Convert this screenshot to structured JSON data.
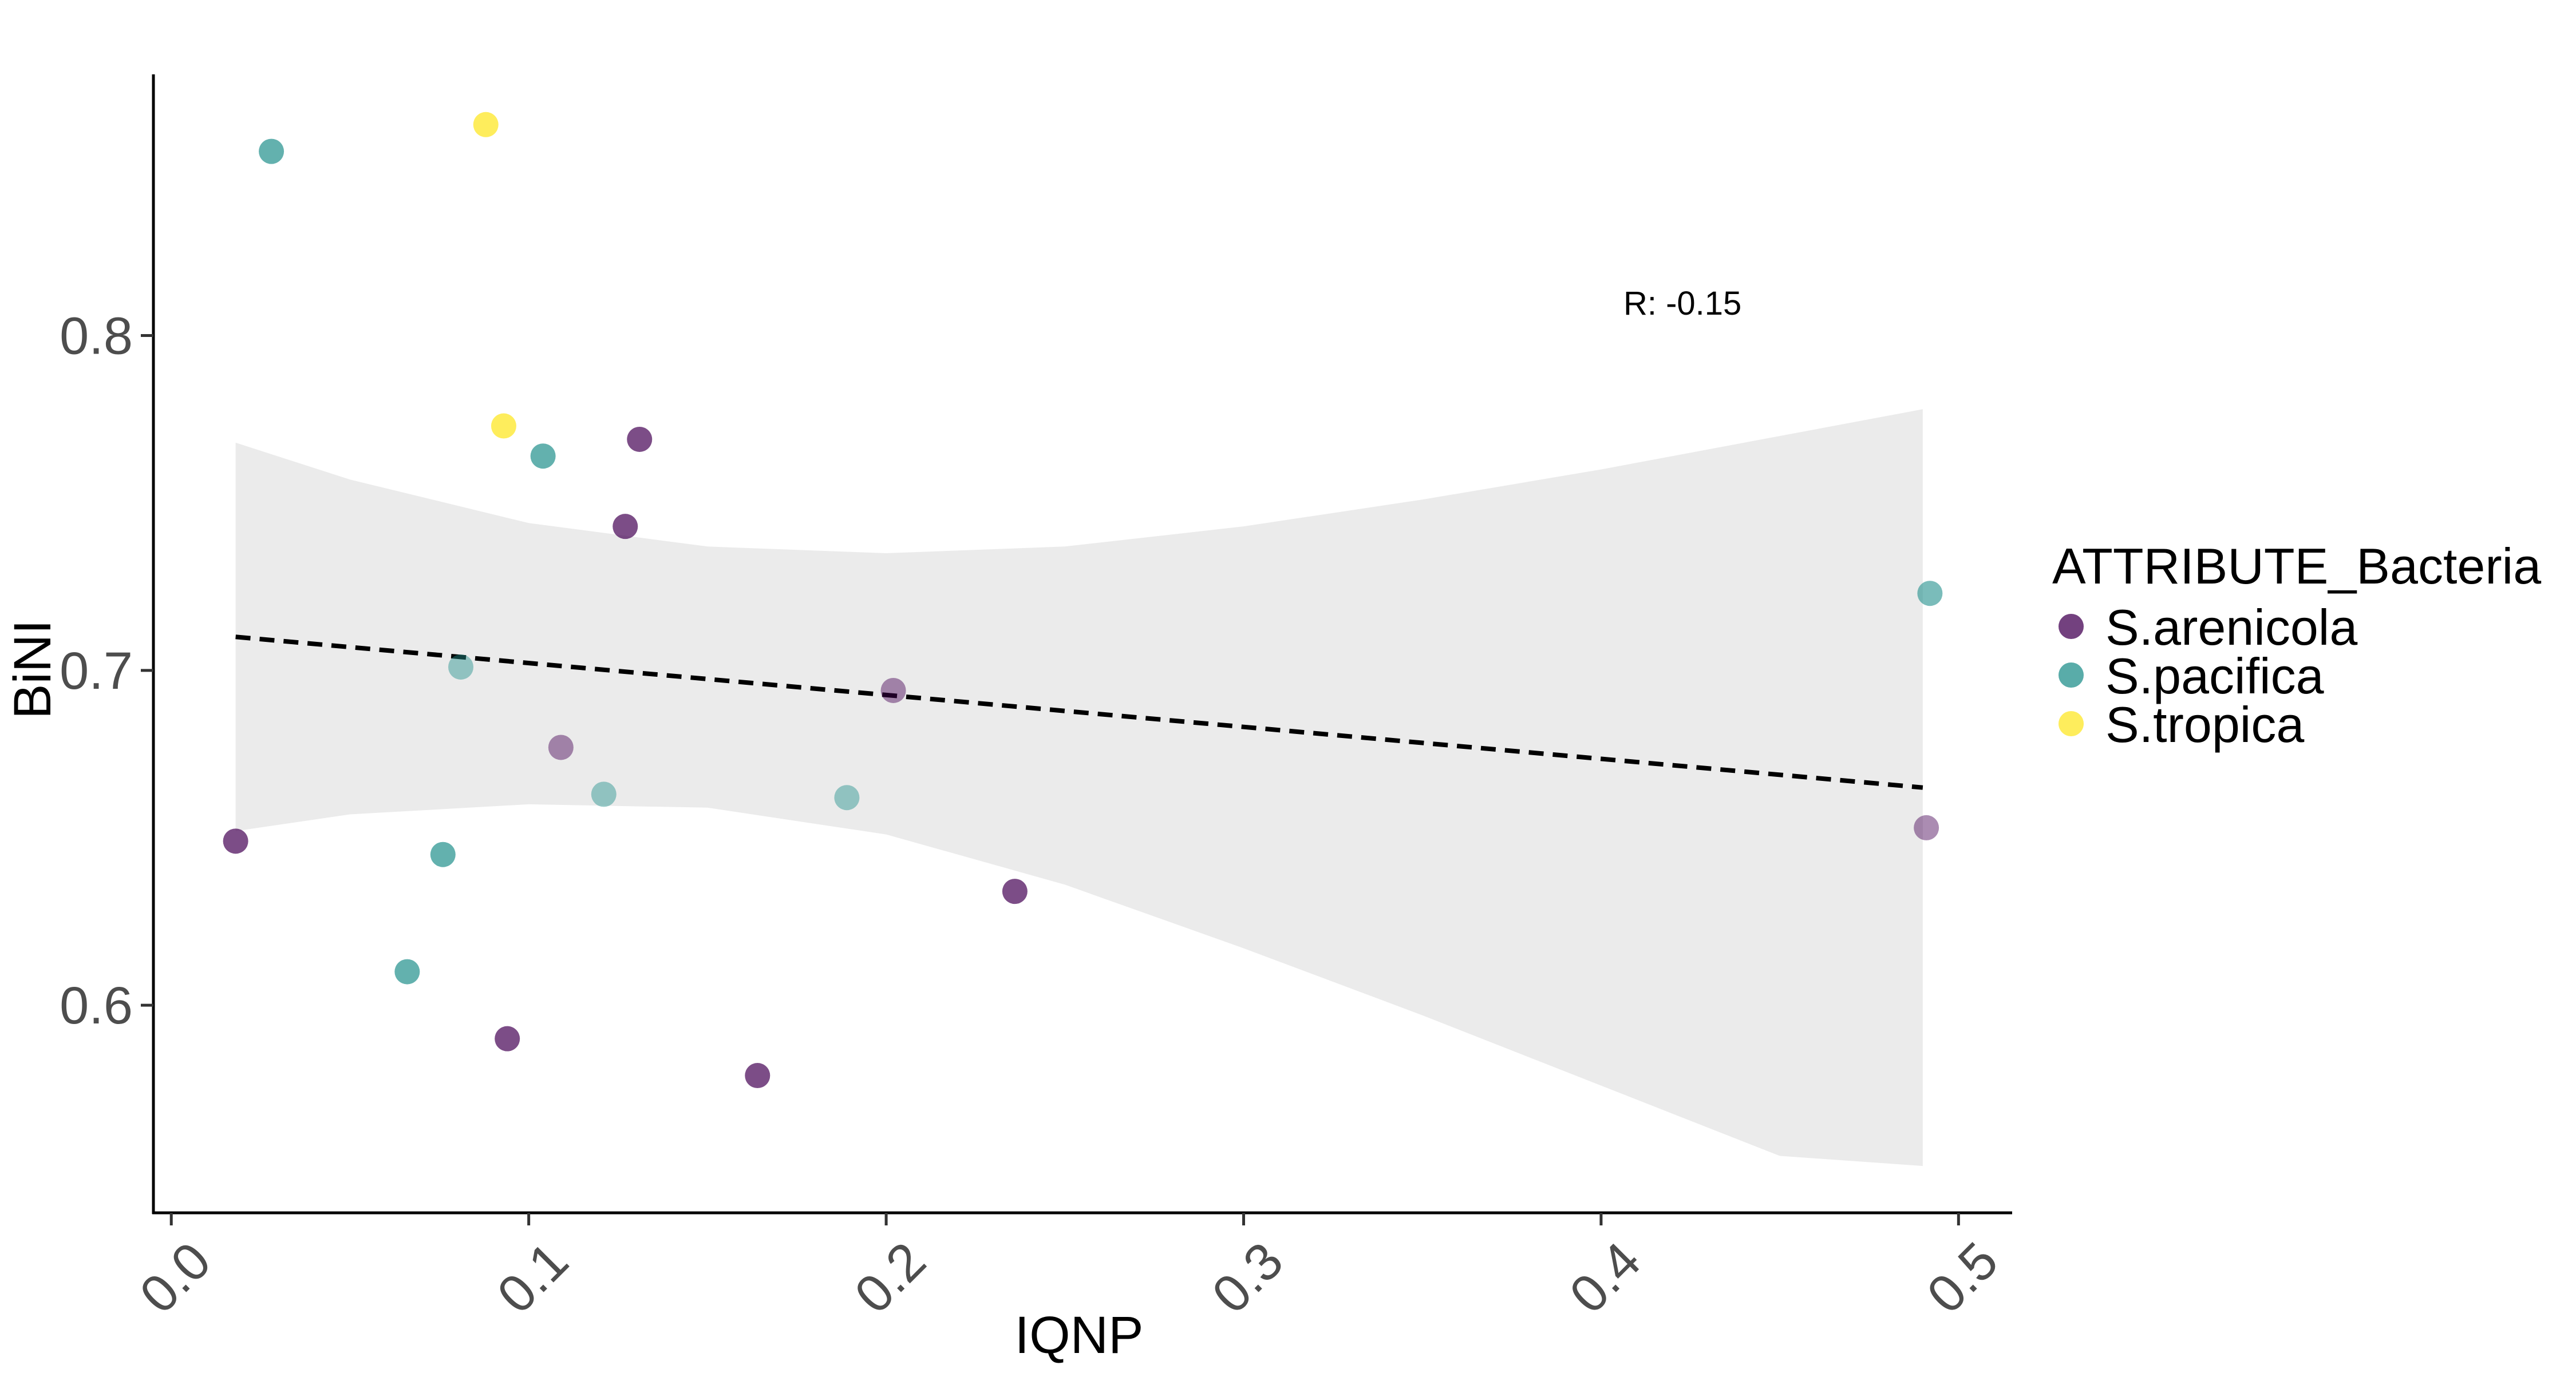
{
  "chart_data": {
    "type": "scatter",
    "title": "",
    "xlabel": "IQNP",
    "ylabel": "BiNI",
    "xlim": [
      -0.005,
      0.515
    ],
    "ylim": [
      0.538,
      0.878
    ],
    "x_ticks": [
      0.0,
      0.1,
      0.2,
      0.3,
      0.4,
      0.5
    ],
    "x_tick_labels": [
      "0.0",
      "0.1",
      "0.2",
      "0.3",
      "0.4",
      "0.5"
    ],
    "y_ticks": [
      0.6,
      0.7,
      0.8
    ],
    "y_tick_labels": [
      "0.6",
      "0.7",
      "0.8"
    ],
    "grid": false,
    "legend": {
      "title": "ATTRIBUTE_Bacteria",
      "placement": "right",
      "entries": [
        {
          "name": "S.arenicola",
          "color": "#440154"
        },
        {
          "name": "S.pacifica",
          "color": "#21908C"
        },
        {
          "name": "S.tropica",
          "color": "#FDE725"
        }
      ]
    },
    "annotation": "R:  -0.15",
    "trend_line": {
      "style": "dashed",
      "color": "#000000",
      "x": [
        0.018,
        0.49
      ],
      "y": [
        0.71,
        0.665
      ]
    },
    "confidence_band": {
      "color": "#ebebeb",
      "x": [
        0.018,
        0.05,
        0.1,
        0.15,
        0.2,
        0.25,
        0.3,
        0.35,
        0.4,
        0.45,
        0.49
      ],
      "upper": [
        0.768,
        0.757,
        0.744,
        0.737,
        0.735,
        0.737,
        0.743,
        0.751,
        0.76,
        0.77,
        0.778
      ],
      "lower": [
        0.652,
        0.657,
        0.66,
        0.659,
        0.651,
        0.636,
        0.617,
        0.597,
        0.576,
        0.555,
        0.552
      ]
    },
    "series": [
      {
        "name": "S.arenicola",
        "color": "#440154",
        "points": [
          {
            "x": 0.018,
            "y": 0.649,
            "alpha": 0.7
          },
          {
            "x": 0.094,
            "y": 0.59,
            "alpha": 0.7
          },
          {
            "x": 0.109,
            "y": 0.677,
            "alpha": 0.45
          },
          {
            "x": 0.127,
            "y": 0.743,
            "alpha": 0.7
          },
          {
            "x": 0.131,
            "y": 0.769,
            "alpha": 0.7
          },
          {
            "x": 0.164,
            "y": 0.579,
            "alpha": 0.7
          },
          {
            "x": 0.202,
            "y": 0.694,
            "alpha": 0.45
          },
          {
            "x": 0.236,
            "y": 0.634,
            "alpha": 0.7
          },
          {
            "x": 0.491,
            "y": 0.653,
            "alpha": 0.45
          }
        ]
      },
      {
        "name": "S.pacifica",
        "color": "#21908C",
        "points": [
          {
            "x": 0.028,
            "y": 0.855,
            "alpha": 0.7
          },
          {
            "x": 0.066,
            "y": 0.61,
            "alpha": 0.7
          },
          {
            "x": 0.076,
            "y": 0.645,
            "alpha": 0.7
          },
          {
            "x": 0.081,
            "y": 0.701,
            "alpha": 0.45
          },
          {
            "x": 0.104,
            "y": 0.764,
            "alpha": 0.7
          },
          {
            "x": 0.121,
            "y": 0.663,
            "alpha": 0.45
          },
          {
            "x": 0.189,
            "y": 0.662,
            "alpha": 0.45
          },
          {
            "x": 0.492,
            "y": 0.723,
            "alpha": 0.6
          }
        ]
      },
      {
        "name": "S.tropica",
        "color": "#FDE725",
        "points": [
          {
            "x": 0.088,
            "y": 0.863,
            "alpha": 0.75
          },
          {
            "x": 0.093,
            "y": 0.773,
            "alpha": 0.75
          }
        ]
      }
    ]
  }
}
